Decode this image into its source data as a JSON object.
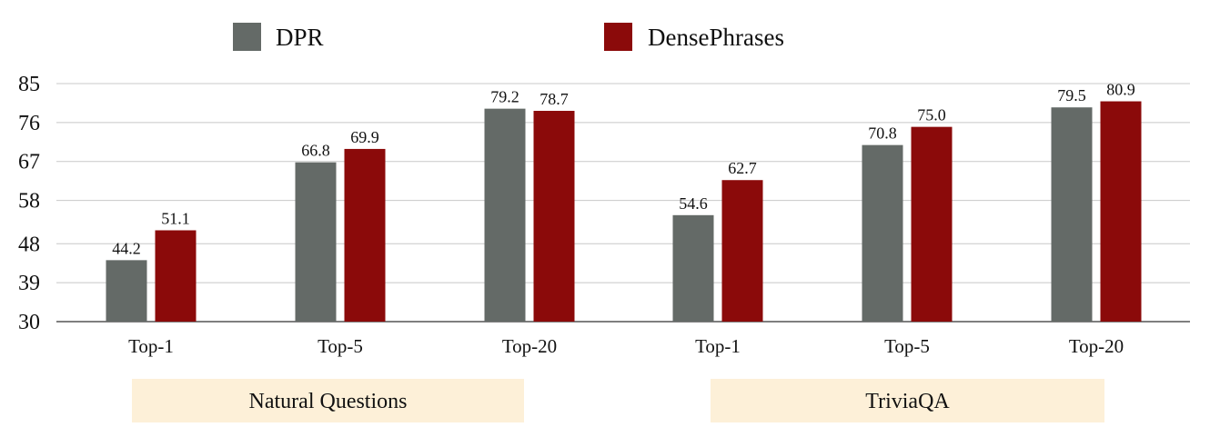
{
  "chart_data": {
    "type": "bar",
    "categories": [
      "Top-1",
      "Top-5",
      "Top-20",
      "Top-1",
      "Top-5",
      "Top-20"
    ],
    "groups": [
      {
        "label": "Natural Questions",
        "categories": [
          0,
          1,
          2
        ]
      },
      {
        "label": "TriviaQA",
        "categories": [
          3,
          4,
          5
        ]
      }
    ],
    "series": [
      {
        "name": "DPR",
        "color": "#646a67",
        "values": [
          44.2,
          66.8,
          79.2,
          54.6,
          70.8,
          79.5
        ]
      },
      {
        "name": "DensePhrases",
        "color": "#8b0a0a",
        "values": [
          51.1,
          69.9,
          78.7,
          62.7,
          75.0,
          80.9
        ]
      }
    ],
    "data_labels": [
      [
        "44.2",
        "66.8",
        "79.2",
        "54.6",
        "70.8",
        "79.5"
      ],
      [
        "51.1",
        "69.9",
        "78.7",
        "62.7",
        "75.0",
        "80.9"
      ]
    ],
    "y_ticks": [
      30,
      39,
      48,
      58,
      67,
      76,
      85
    ],
    "ylim": [
      30,
      85
    ],
    "grid": true,
    "legend_position": "top",
    "group_band_color": "#fdf0d8",
    "title": "",
    "xlabel": "",
    "ylabel": ""
  }
}
